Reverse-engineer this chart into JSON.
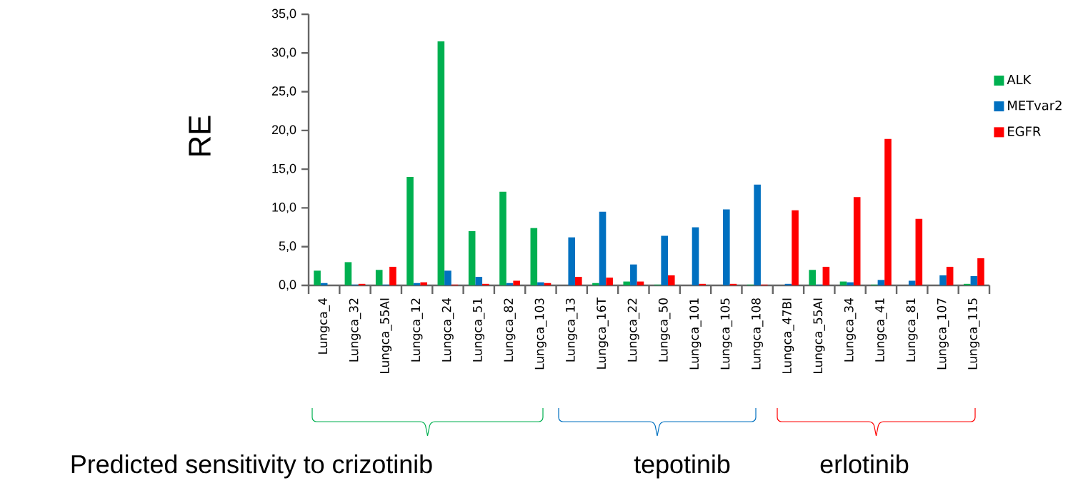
{
  "chart_data": {
    "type": "bar",
    "ylabel": "RE",
    "categories": [
      "Lungca_4",
      "Lungca_32",
      "Lungca_55AI",
      "Lungca_12",
      "Lungca_24",
      "Lungca_51",
      "Lungca_82",
      "Lungca_103",
      "Lungca_13",
      "Lungca_16T",
      "Lungca_22",
      "Lungca_50",
      "Lungca_101",
      "Lungca_105",
      "Lungca_108",
      "Lungca_47BI",
      "Lungca_55AI",
      "Lungca_34",
      "Lungca_41",
      "Lungca_81",
      "Lungca_107",
      "Lungca_115"
    ],
    "series": [
      {
        "name": "ALK",
        "color": "#00b050",
        "values": [
          1.9,
          3.0,
          2.0,
          14.0,
          31.5,
          7.0,
          12.1,
          7.4,
          0.0,
          0.3,
          0.5,
          0.1,
          0.0,
          0.0,
          0.1,
          0.0,
          2.0,
          0.5,
          0.1,
          0.0,
          0.0,
          0.2
        ]
      },
      {
        "name": "METvar2",
        "color": "#0070c0",
        "values": [
          0.3,
          0.1,
          0.1,
          0.3,
          1.9,
          1.1,
          0.3,
          0.4,
          6.2,
          9.5,
          2.7,
          6.4,
          7.5,
          9.8,
          13.0,
          0.2,
          0.1,
          0.4,
          0.7,
          0.6,
          1.3,
          1.2
        ]
      },
      {
        "name": "EGFR",
        "color": "#ff0000",
        "values": [
          0.0,
          0.2,
          2.4,
          0.4,
          0.1,
          0.2,
          0.6,
          0.3,
          1.1,
          1.0,
          0.5,
          1.3,
          0.2,
          0.2,
          0.1,
          9.7,
          2.4,
          11.4,
          18.9,
          8.6,
          2.4,
          3.5
        ]
      }
    ],
    "ylim": [
      0,
      35
    ],
    "yticks": [
      {
        "value": 0,
        "label": "0,0"
      },
      {
        "value": 5,
        "label": "5,0"
      },
      {
        "value": 10,
        "label": "10,0"
      },
      {
        "value": 15,
        "label": "15,0"
      },
      {
        "value": 20,
        "label": "20,0"
      },
      {
        "value": 25,
        "label": "25,0"
      },
      {
        "value": 30,
        "label": "30,0"
      },
      {
        "value": 35,
        "label": "35,0"
      }
    ],
    "grid": false,
    "legend": "right",
    "annotations": [
      "Predicted sensitivity to crizotinib",
      "tepotinib",
      "erlotinib"
    ]
  }
}
